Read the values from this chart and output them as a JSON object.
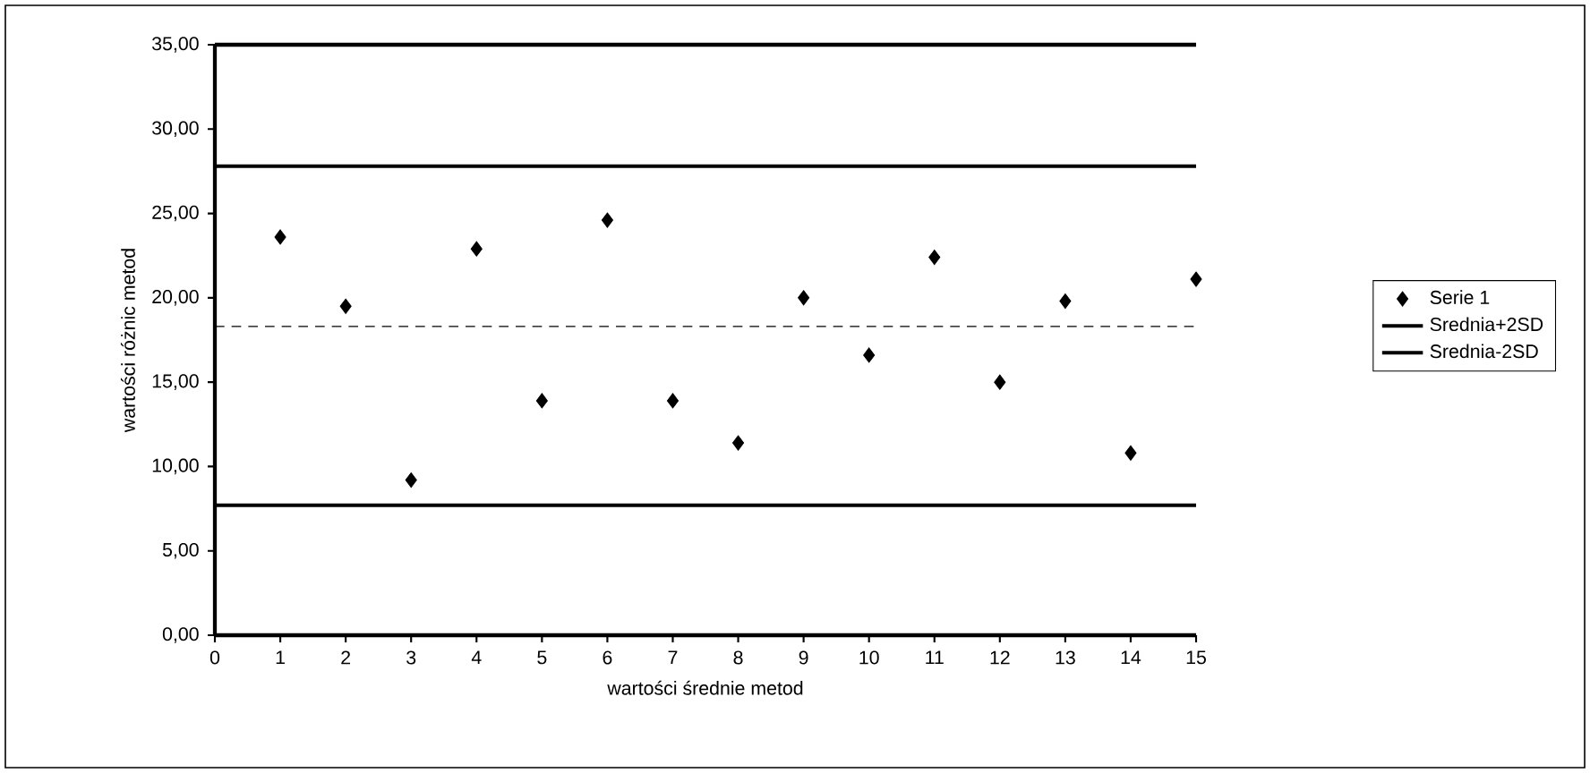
{
  "chart_data": {
    "type": "scatter",
    "xlabel": "wartości średnie metod",
    "ylabel": "wartości różnic metod",
    "xlim": [
      0,
      15
    ],
    "ylim": [
      0,
      35
    ],
    "xticks": [
      0,
      1,
      2,
      3,
      4,
      5,
      6,
      7,
      8,
      9,
      10,
      11,
      12,
      13,
      14,
      15
    ],
    "yticks": [
      {
        "value": 0,
        "label": "0,00"
      },
      {
        "value": 5,
        "label": "5,00"
      },
      {
        "value": 10,
        "label": "10,00"
      },
      {
        "value": 15,
        "label": "15,00"
      },
      {
        "value": 20,
        "label": "20,00"
      },
      {
        "value": 25,
        "label": "25,00"
      },
      {
        "value": 30,
        "label": "30,00"
      },
      {
        "value": 35,
        "label": "35,00"
      }
    ],
    "x": [
      1,
      2,
      3,
      4,
      5,
      6,
      7,
      8,
      9,
      10,
      11,
      12,
      13,
      14,
      15
    ],
    "series": [
      {
        "name": "Serie 1",
        "color": "#000000",
        "values": [
          23.6,
          19.5,
          9.2,
          22.9,
          13.9,
          24.6,
          13.9,
          11.4,
          20.0,
          16.6,
          22.4,
          15.0,
          19.8,
          10.8,
          21.1
        ]
      }
    ],
    "marker": "diamond",
    "ref_lines": [
      {
        "axis": "y",
        "value": 27.8,
        "label": "Srednia+2SD",
        "color": "#000000",
        "line_style": "solid"
      },
      {
        "axis": "y",
        "value": 7.7,
        "label": "Srednia-2SD",
        "color": "#000000",
        "line_style": "solid"
      },
      {
        "axis": "y",
        "value": 18.3,
        "color": "#000000",
        "line_style": "dashed"
      }
    ],
    "legend": "right"
  }
}
